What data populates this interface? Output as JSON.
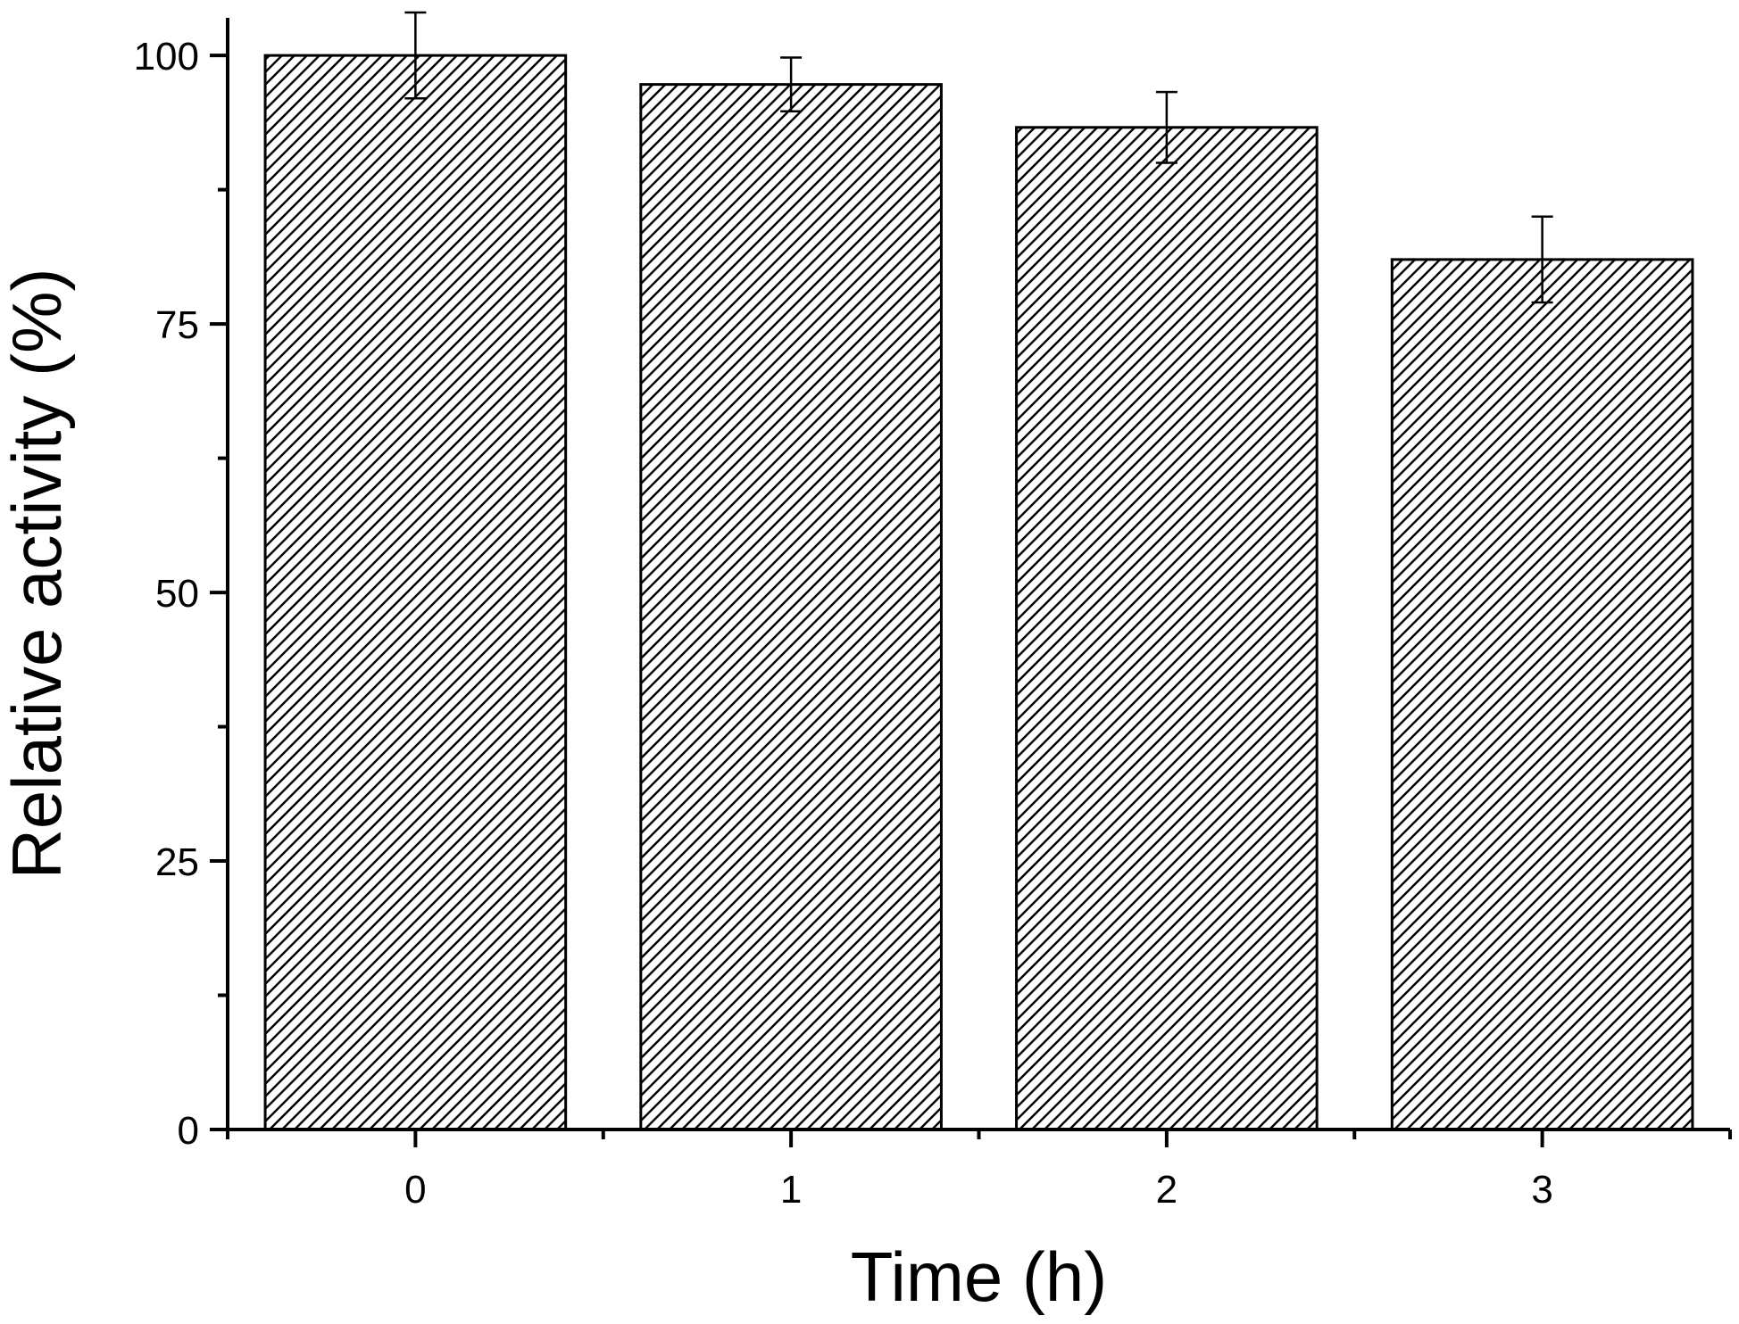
{
  "chart_data": {
    "type": "bar",
    "title": "",
    "xlabel": "Time (h)",
    "ylabel": "Relative activity (%)",
    "categories": [
      "0",
      "1",
      "2",
      "3"
    ],
    "values": [
      100,
      97.3,
      93.3,
      81
    ],
    "errors": [
      4,
      2.5,
      3.3,
      4
    ],
    "ylim": [
      0,
      103.5
    ],
    "xlim": [
      -0.5,
      3.5
    ],
    "yticks": [
      0,
      25,
      50,
      75,
      100
    ],
    "yticks_labels": [
      "0",
      "25",
      "50",
      "75",
      "100"
    ],
    "bar_fill": "diagonal-hatch",
    "bar_color": "#000000",
    "background": "#ffffff",
    "grid": false,
    "legend": "none"
  }
}
